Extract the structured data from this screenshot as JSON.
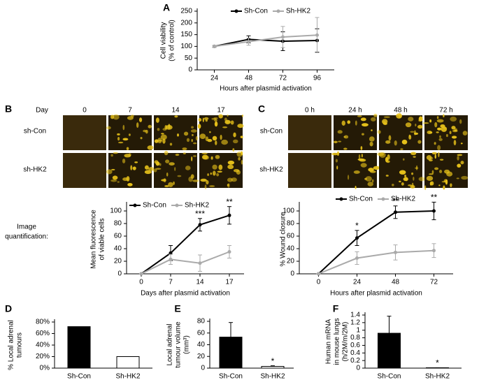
{
  "panel_labels": [
    "A",
    "B",
    "C",
    "D",
    "E",
    "F"
  ],
  "side_label": [
    "Image",
    "quantification:"
  ],
  "image_grids": [
    {
      "header": "Day",
      "columns": [
        "0",
        "7",
        "14",
        "17"
      ],
      "rows": [
        "sh-Con",
        "sh-HK2"
      ]
    },
    {
      "columns": [
        "0 h",
        "24 h",
        "48 h",
        "72 h"
      ],
      "rows": [
        "sh-Con",
        "sh-HK2"
      ]
    }
  ],
  "chart_data": [
    {
      "type": "line",
      "ylabel": [
        "Cell viability",
        "(% of control)"
      ],
      "xlabel": "Hours after plasmid activation",
      "categories": [
        "24",
        "48",
        "72",
        "96"
      ],
      "ylim": [
        0,
        250
      ],
      "yticks": [
        0,
        50,
        100,
        150,
        200,
        250
      ],
      "series": [
        {
          "name": "Sh-Con",
          "color": "#000000",
          "values": [
            100,
            130,
            122,
            125
          ],
          "errors": [
            4,
            15,
            40,
            50
          ]
        },
        {
          "name": "Sh-HK2",
          "color": "#aaaaaa",
          "values": [
            100,
            120,
            140,
            148
          ],
          "errors": [
            4,
            15,
            45,
            75
          ]
        }
      ]
    },
    {
      "type": "line",
      "ylabel": [
        "Mean fluorescence",
        "of viable cells"
      ],
      "xlabel": "Days after plasmid activation",
      "categories": [
        "0",
        "7",
        "14",
        "17"
      ],
      "ylim": [
        0,
        110
      ],
      "yticks": [
        0,
        20,
        40,
        60,
        80,
        100
      ],
      "series": [
        {
          "name": "Sh-Con",
          "color": "#000000",
          "values": [
            0,
            33,
            78,
            93
          ],
          "errors": [
            0,
            12,
            10,
            14
          ]
        },
        {
          "name": "Sh-HK2",
          "color": "#aaaaaa",
          "values": [
            0,
            23,
            17,
            35
          ],
          "errors": [
            0,
            8,
            13,
            10
          ]
        }
      ],
      "annotations": [
        {
          "category": "14",
          "text": "***"
        },
        {
          "category": "17",
          "text": "**"
        }
      ]
    },
    {
      "type": "line",
      "ylabel": [
        "% Wound closure"
      ],
      "xlabel": "Hours after plasmid activation",
      "categories": [
        "0",
        "24",
        "48",
        "72"
      ],
      "ylim": [
        0,
        110
      ],
      "yticks": [
        0,
        20,
        40,
        60,
        80,
        100
      ],
      "series": [
        {
          "name": "Sh-Con",
          "color": "#000000",
          "values": [
            0,
            57,
            98,
            100
          ],
          "errors": [
            0,
            12,
            10,
            14
          ]
        },
        {
          "name": "Sh-HK2",
          "color": "#aaaaaa",
          "values": [
            0,
            25,
            34,
            37
          ],
          "errors": [
            0,
            10,
            12,
            11
          ]
        }
      ],
      "annotations": [
        {
          "category": "24",
          "text": "*"
        },
        {
          "category": "48",
          "text": "**"
        },
        {
          "category": "72",
          "text": "**"
        }
      ]
    },
    {
      "type": "bar",
      "ylabel": [
        "% Local adrenal",
        "tumours"
      ],
      "categories": [
        "Sh-Con",
        "Sh-HK2"
      ],
      "values": [
        72,
        20
      ],
      "colors": [
        "#000000",
        "#ffffff"
      ],
      "ylim": [
        0,
        80
      ],
      "yticks": [
        {
          "value": 0,
          "label": "0%"
        },
        {
          "value": 20,
          "label": "20%"
        },
        {
          "value": 40,
          "label": "40%"
        },
        {
          "value": 60,
          "label": "60%"
        },
        {
          "value": 80,
          "label": "80%"
        }
      ]
    },
    {
      "type": "bar",
      "ylabel": [
        "Local adrenal",
        "tumour volume",
        "(mm³)"
      ],
      "categories": [
        "Sh-Con",
        "Sh-HK2"
      ],
      "values": [
        53,
        3
      ],
      "errors": [
        25,
        1
      ],
      "colors": [
        "#000000",
        "#ffffff"
      ],
      "ylim": [
        0,
        80
      ],
      "yticks": [
        0,
        20,
        40,
        60,
        80
      ],
      "annotations": [
        {
          "category": "Sh-HK2",
          "text": "*"
        }
      ]
    },
    {
      "type": "bar",
      "ylabel": [
        "Human mRNA",
        "in mouse lungs",
        "(h/2M/m/2M)"
      ],
      "categories": [
        "Sh-Con",
        "Sh-HK2"
      ],
      "values": [
        0.92,
        0.01
      ],
      "errors": [
        0.45,
        0
      ],
      "colors": [
        "#000000",
        "#ffffff"
      ],
      "ylim": [
        0,
        1.4
      ],
      "yticks": [
        0,
        0.2,
        0.4,
        0.6,
        0.8,
        1,
        1.2,
        1.4
      ],
      "annotations": [
        {
          "category": "Sh-HK2",
          "text": "*"
        }
      ]
    }
  ]
}
